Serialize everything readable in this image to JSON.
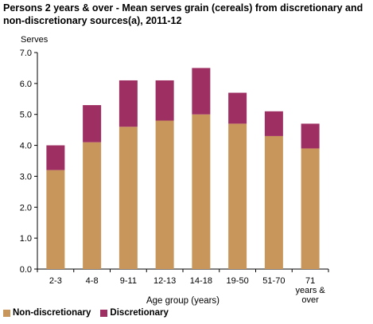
{
  "chart_data": {
    "type": "bar",
    "stacked": true,
    "title": "Persons 2 years  & over - Mean serves grain (cereals) from discretionary and non-discretionary sources(a),  2011-12",
    "ylabel": "Serves",
    "xlabel": "Age group (years)",
    "ylim": [
      0,
      7
    ],
    "yticks": [
      "0.0",
      "1.0",
      "2.0",
      "3.0",
      "4.0",
      "5.0",
      "6.0",
      "7.0"
    ],
    "categories": [
      "2-3",
      "4-8",
      "9-11",
      "12-13",
      "14-18",
      "19-50",
      "51-70",
      "71 years & over"
    ],
    "category_lines": [
      [
        "2-3"
      ],
      [
        "4-8"
      ],
      [
        "9-11"
      ],
      [
        "12-13"
      ],
      [
        "14-18"
      ],
      [
        "19-50"
      ],
      [
        "51-70"
      ],
      [
        "71",
        "years &",
        "over"
      ]
    ],
    "series": [
      {
        "name": "Non-discretionary",
        "color": "#c8965a",
        "values": [
          3.2,
          4.1,
          4.6,
          4.8,
          5.0,
          4.7,
          4.3,
          3.9
        ]
      },
      {
        "name": "Discretionary",
        "color": "#9e2f62",
        "values": [
          0.8,
          1.2,
          1.5,
          1.3,
          1.5,
          1.0,
          0.8,
          0.8
        ]
      }
    ],
    "grid": false,
    "legend_position": "bottom-left"
  }
}
